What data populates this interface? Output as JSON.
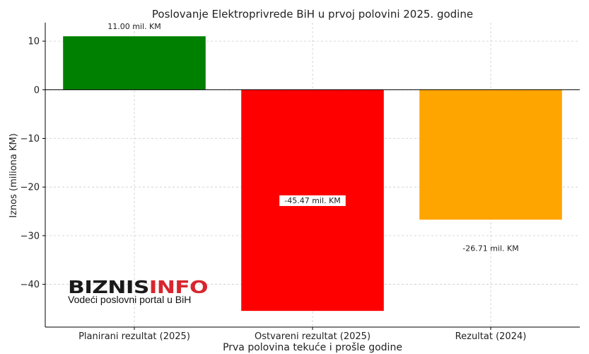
{
  "chart_data": {
    "type": "bar",
    "title": "Poslovanje Elektroprivrede BiH u prvoj polovini 2025. godine",
    "xlabel": "Prva polovina tekuće i prošle godine",
    "ylabel": "Iznos (miliona KM)",
    "categories": [
      "Planirani rezultat (2025)",
      "Ostvareni rezultat (2025)",
      "Rezultat (2024)"
    ],
    "values": [
      11.0,
      -45.47,
      -26.71
    ],
    "value_labels": [
      "11.00 mil. KM",
      "-45.47 mil. KM",
      "-26.71 mil. KM"
    ],
    "colors": [
      "#008000",
      "#ff0000",
      "#ffa500"
    ],
    "ylim": [
      -48.8,
      13.8
    ],
    "yticks": [
      10,
      0,
      -10,
      -20,
      -30,
      -40
    ],
    "ytick_labels": [
      "10",
      "0",
      "−10",
      "−20",
      "−30",
      "−40"
    ],
    "grid": true
  },
  "watermark": {
    "logo_part1": "BIZNIS",
    "logo_part2": "INFO",
    "tagline": "Vodeći poslovni portal u BiH"
  }
}
